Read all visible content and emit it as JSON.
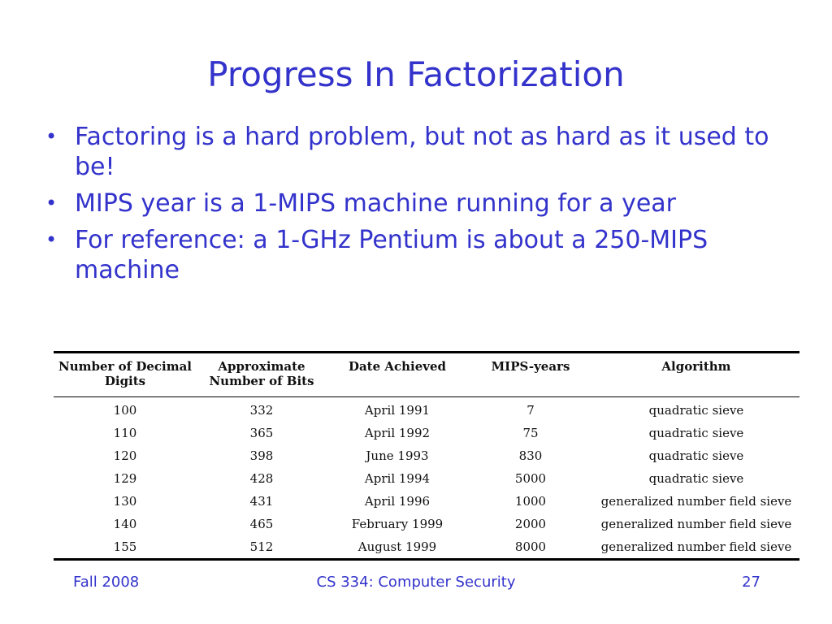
{
  "slide": {
    "title": "Progress In Factorization",
    "bullets": [
      "Factoring is a hard problem, but not as hard as it used to be!",
      "MIPS year is a 1-MIPS machine running for a year",
      "For reference: a 1-GHz Pentium is about a 250-MIPS machine"
    ],
    "bullet_symbol": "•"
  },
  "table": {
    "headers": [
      "Number of Decimal Digits",
      "Approximate Number of Bits",
      "Date Achieved",
      "MIPS-years",
      "Algorithm"
    ],
    "rows": [
      [
        "100",
        "332",
        "April 1991",
        "7",
        "quadratic sieve"
      ],
      [
        "110",
        "365",
        "April 1992",
        "75",
        "quadratic sieve"
      ],
      [
        "120",
        "398",
        "June 1993",
        "830",
        "quadratic sieve"
      ],
      [
        "129",
        "428",
        "April 1994",
        "5000",
        "quadratic sieve"
      ],
      [
        "130",
        "431",
        "April 1996",
        "1000",
        "generalized number field sieve"
      ],
      [
        "140",
        "465",
        "February 1999",
        "2000",
        "generalized number field sieve"
      ],
      [
        "155",
        "512",
        "August 1999",
        "8000",
        "generalized number field sieve"
      ]
    ]
  },
  "footer": {
    "left": "Fall 2008",
    "center": "CS 334: Computer Security",
    "right": "27"
  },
  "colors": {
    "text_accent": "#3333cc",
    "table_text": "#111111"
  }
}
